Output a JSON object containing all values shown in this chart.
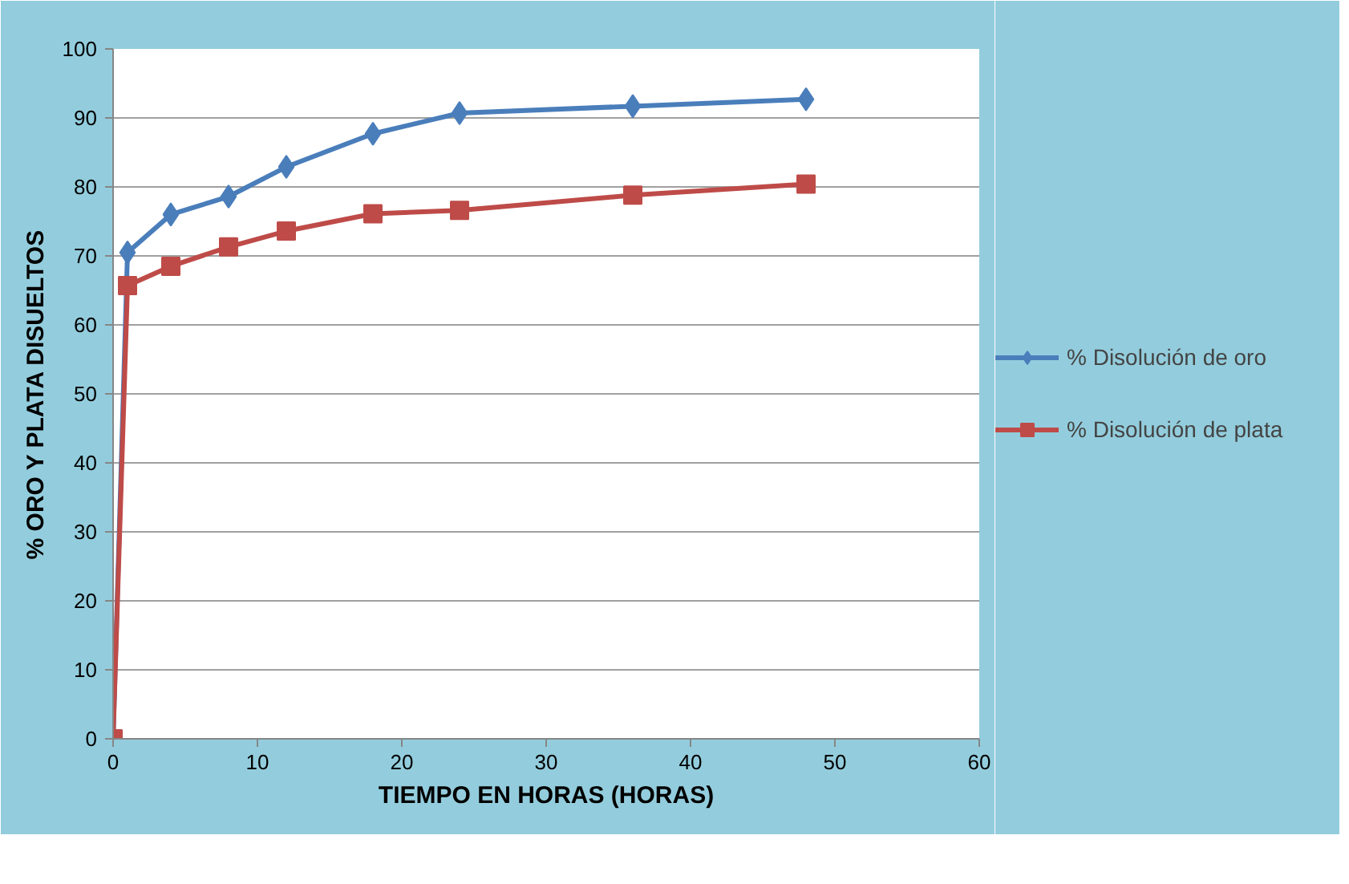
{
  "chart_data": {
    "type": "line",
    "xlabel": "TIEMPO EN HORAS (HORAS)",
    "ylabel": "% ORO Y PLATA DISUELTOS",
    "x": [
      0,
      1,
      4,
      8,
      12,
      18,
      24,
      36,
      48
    ],
    "series": [
      {
        "name": "% Disolución de oro",
        "color": "#4a7ebb",
        "marker": "diamond",
        "values": [
          0,
          70.5,
          76,
          78.6,
          82.9,
          87.7,
          90.7,
          91.7,
          92.7
        ]
      },
      {
        "name": "% Disolución de plata",
        "color": "#be4b48",
        "marker": "square",
        "values": [
          0,
          65.7,
          68.5,
          71.3,
          73.6,
          76.1,
          76.6,
          78.8,
          80.4
        ]
      }
    ],
    "xlim": [
      0,
      60
    ],
    "xticks": [
      0,
      10,
      20,
      30,
      40,
      50,
      60
    ],
    "ylim": [
      0,
      100
    ],
    "yticks": [
      0,
      10,
      20,
      30,
      40,
      50,
      60,
      70,
      80,
      90,
      100
    ],
    "grid": "y",
    "legend": "right",
    "line_style": "solid"
  }
}
